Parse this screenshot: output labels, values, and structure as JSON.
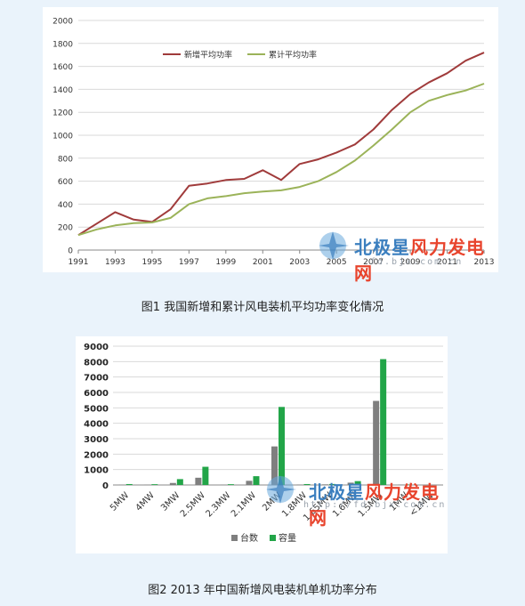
{
  "chart_data": [
    {
      "type": "line",
      "x": [
        1991,
        1992,
        1993,
        1994,
        1995,
        1996,
        1997,
        1998,
        1999,
        2000,
        2001,
        2002,
        2003,
        2004,
        2005,
        2006,
        2007,
        2008,
        2009,
        2010,
        2011,
        2012,
        2013
      ],
      "x_tick_labels": [
        "1991",
        "1993",
        "1995",
        "1997",
        "1999",
        "2001",
        "2003",
        "2005",
        "2007",
        "2009",
        "2011",
        "2013"
      ],
      "y_tick_labels": [
        "0",
        "200",
        "400",
        "600",
        "800",
        "1000",
        "1200",
        "1400",
        "1600",
        "1800",
        "2000"
      ],
      "ylim": [
        0,
        2000
      ],
      "grid": true,
      "legend_position": "top-left",
      "series": [
        {
          "name": "新增平均功率",
          "color": "#a03b3b",
          "values": [
            130,
            230,
            330,
            265,
            245,
            355,
            560,
            580,
            610,
            620,
            695,
            610,
            750,
            790,
            850,
            920,
            1050,
            1220,
            1360,
            1460,
            1540,
            1650,
            1720
          ]
        },
        {
          "name": "累计平均功率",
          "color": "#9bb359",
          "values": [
            130,
            180,
            215,
            235,
            240,
            280,
            400,
            450,
            470,
            495,
            510,
            520,
            550,
            600,
            680,
            780,
            910,
            1050,
            1200,
            1300,
            1350,
            1390,
            1450
          ]
        }
      ]
    },
    {
      "type": "bar",
      "categories": [
        "5MW",
        "4MW",
        "3MW",
        "2.5MW",
        "2.3MW",
        "2.1MW",
        "2MW",
        "1.8MW",
        "1.65MW",
        "1.6MW",
        "1.5MW",
        "1MW",
        "<1MW"
      ],
      "y_tick_labels": [
        "0",
        "1000",
        "2000",
        "3000",
        "4000",
        "5000",
        "6000",
        "7000",
        "8000",
        "9000"
      ],
      "ylim": [
        0,
        9000
      ],
      "grid": true,
      "legend_position": "bottom",
      "series": [
        {
          "name": "台数",
          "color": "#7f7f7f",
          "values": [
            20,
            20,
            130,
            470,
            20,
            270,
            2500,
            30,
            40,
            150,
            5450,
            30,
            0
          ]
        },
        {
          "name": "容量",
          "color": "#22a548",
          "values": [
            60,
            50,
            380,
            1180,
            50,
            570,
            5060,
            60,
            65,
            250,
            8160,
            30,
            0
          ]
        }
      ]
    }
  ],
  "captions": {
    "fig1": "图1 我国新增和累计风电装机平均功率变化情况",
    "fig2": "图2 2013 年中国新增风电装机单机功率分布"
  },
  "watermark": {
    "name_part1": "北极星",
    "name_part2": "风力发电网",
    "url1": "fd.bjx.com.cn",
    "url2": "http://fd.bjx.com.cn",
    "color_part1": "#3b7fbf",
    "color_part2": "#e8442d"
  }
}
